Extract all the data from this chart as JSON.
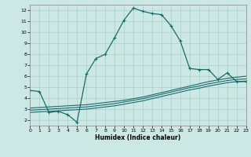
{
  "xlabel": "Humidex (Indice chaleur)",
  "bg_color": "#cce8e4",
  "grid_color": "#aacfcc",
  "line_color": "#1a6b6b",
  "xlim": [
    0,
    23
  ],
  "ylim": [
    1.5,
    12.5
  ],
  "xticks": [
    0,
    1,
    2,
    3,
    4,
    5,
    6,
    7,
    8,
    9,
    10,
    11,
    12,
    13,
    14,
    15,
    16,
    17,
    18,
    19,
    20,
    21,
    22,
    23
  ],
  "yticks": [
    2,
    3,
    4,
    5,
    6,
    7,
    8,
    9,
    10,
    11,
    12
  ],
  "curve1_x": [
    0,
    1,
    2,
    3,
    4,
    5,
    6,
    7,
    8,
    9,
    10,
    11,
    12,
    13,
    14,
    15,
    16,
    17,
    18,
    19,
    20,
    21,
    22,
    23
  ],
  "curve1_y": [
    4.7,
    4.6,
    2.7,
    2.8,
    2.5,
    1.8,
    6.2,
    7.6,
    8.0,
    9.5,
    11.1,
    12.2,
    11.9,
    11.7,
    11.6,
    10.6,
    9.2,
    6.7,
    6.6,
    6.6,
    5.7,
    6.3,
    5.5,
    5.5
  ],
  "curve2_x": [
    0,
    1,
    2,
    3,
    4,
    5,
    6,
    7,
    8,
    9,
    10,
    11,
    12,
    13,
    14,
    15,
    16,
    17,
    18,
    19,
    20,
    21,
    22,
    23
  ],
  "curve2_y": [
    3.1,
    3.15,
    3.2,
    3.25,
    3.3,
    3.35,
    3.4,
    3.5,
    3.6,
    3.7,
    3.8,
    3.95,
    4.1,
    4.3,
    4.5,
    4.7,
    4.9,
    5.1,
    5.3,
    5.5,
    5.65,
    5.8,
    5.9,
    6.0
  ],
  "curve3_x": [
    0,
    1,
    2,
    3,
    4,
    5,
    6,
    7,
    8,
    9,
    10,
    11,
    12,
    13,
    14,
    15,
    16,
    17,
    18,
    19,
    20,
    21,
    22,
    23
  ],
  "curve3_y": [
    2.9,
    2.95,
    3.0,
    3.05,
    3.1,
    3.15,
    3.2,
    3.3,
    3.4,
    3.5,
    3.65,
    3.8,
    3.95,
    4.15,
    4.35,
    4.55,
    4.75,
    4.95,
    5.1,
    5.3,
    5.45,
    5.6,
    5.7,
    5.75
  ],
  "curve4_x": [
    0,
    1,
    2,
    3,
    4,
    5,
    6,
    7,
    8,
    9,
    10,
    11,
    12,
    13,
    14,
    15,
    16,
    17,
    18,
    19,
    20,
    21,
    22,
    23
  ],
  "curve4_y": [
    2.7,
    2.75,
    2.8,
    2.85,
    2.9,
    2.95,
    3.0,
    3.1,
    3.2,
    3.3,
    3.45,
    3.6,
    3.75,
    3.95,
    4.15,
    4.35,
    4.55,
    4.75,
    4.9,
    5.1,
    5.25,
    5.4,
    5.5,
    5.55
  ]
}
